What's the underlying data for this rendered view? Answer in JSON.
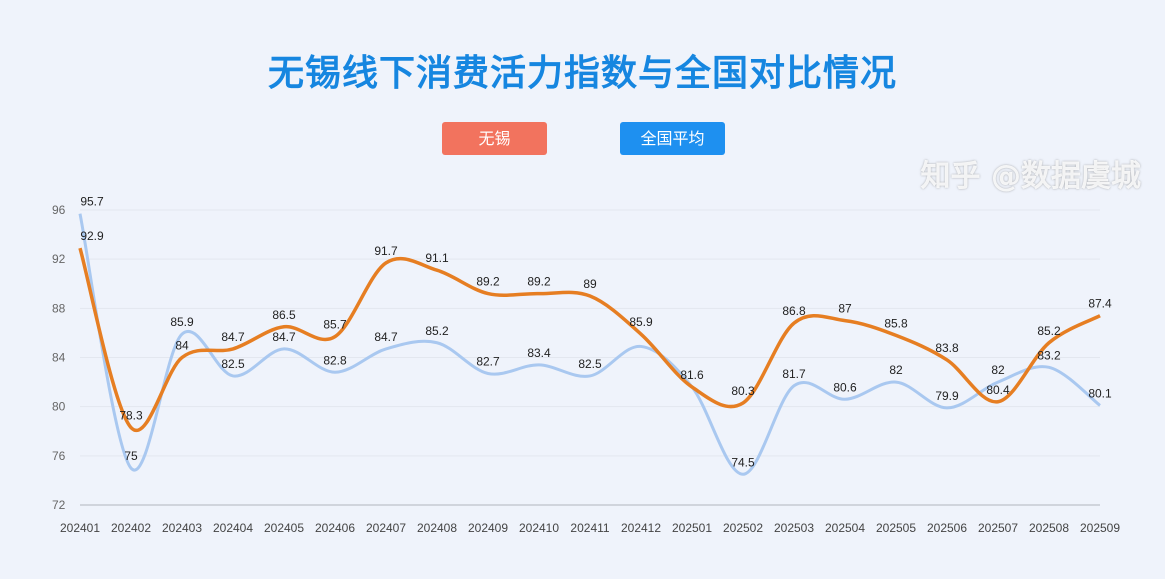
{
  "chart_data": {
    "type": "line",
    "title": "无锡线下消费活力指数与全国对比情况",
    "categories": [
      "202401",
      "202402",
      "202403",
      "202404",
      "202405",
      "202406",
      "202407",
      "202408",
      "202409",
      "202410",
      "202411",
      "202412",
      "202501",
      "202502",
      "202503",
      "202504",
      "202505",
      "202506",
      "202507",
      "202508",
      "202509"
    ],
    "yticks": [
      72,
      76,
      80,
      84,
      88,
      92,
      96
    ],
    "ylim": [
      72,
      96
    ],
    "grid": true,
    "legend_position": "top",
    "smooth": true,
    "series": [
      {
        "name": "无锡",
        "color": "#e67e22",
        "legend_color": "#f2735e",
        "values": [
          92.9,
          78.3,
          84,
          84.7,
          86.5,
          85.7,
          91.7,
          91.1,
          89.2,
          89.2,
          89,
          85.9,
          81.6,
          80.3,
          86.8,
          87,
          85.8,
          83.8,
          80.4,
          85.2,
          87.4
        ],
        "hidden_labels": [
          12
        ]
      },
      {
        "name": "全国平均",
        "color": "#a9c8f0",
        "legend_color": "#1e90f0",
        "values": [
          95.7,
          75,
          85.9,
          82.5,
          84.7,
          82.8,
          84.7,
          85.2,
          82.7,
          83.4,
          82.5,
          84.9,
          81.6,
          74.5,
          81.7,
          80.6,
          82,
          79.9,
          82,
          83.2,
          80.1
        ],
        "hidden_labels": [
          11
        ]
      }
    ]
  },
  "watermark": "知乎 @数据虞城"
}
